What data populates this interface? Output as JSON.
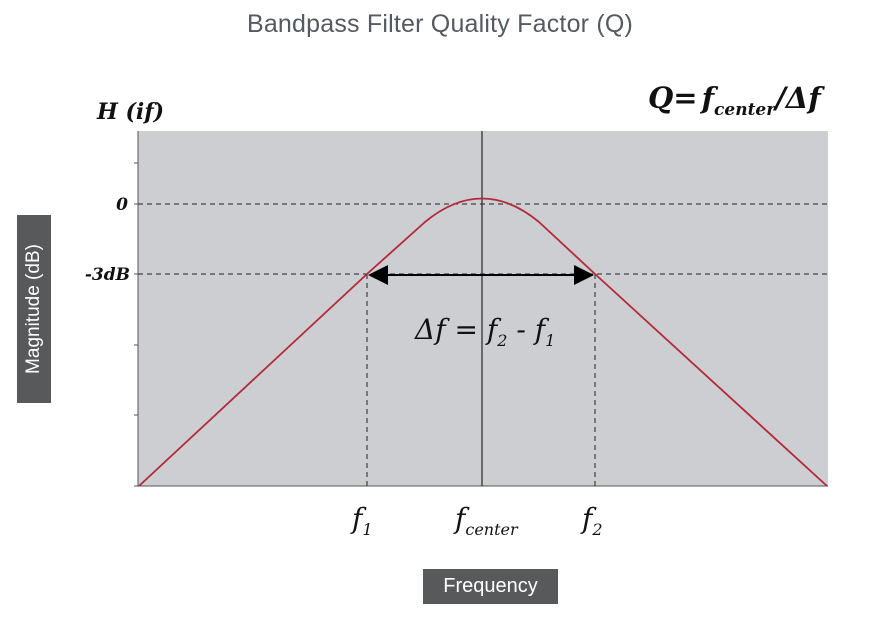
{
  "title": "Bandpass Filter Quality Factor (Q)",
  "y_axis_label": "Magnitude (dB)",
  "x_axis_label": "Frequency",
  "y_function_label": "H (if)",
  "y_ticks": {
    "zero": "0",
    "minus3": "-3dB"
  },
  "x_ticks": {
    "f1": {
      "base": "f",
      "sub": "1"
    },
    "fcenter": {
      "base": "f",
      "sub": "center"
    },
    "f2": {
      "base": "f",
      "sub": "2"
    }
  },
  "formula_q": {
    "lhs": "Q=",
    "f": "f",
    "sub": "center",
    "rest": "/Δf"
  },
  "formula_df": {
    "lhs": "Δf = ",
    "f2": "f",
    "sub2": "2",
    "minus": " - ",
    "f1": "f",
    "sub1": "1"
  },
  "colors": {
    "plot_bg": "#ccced1",
    "curve": "#b5283b",
    "label_box": "#58595b"
  }
}
